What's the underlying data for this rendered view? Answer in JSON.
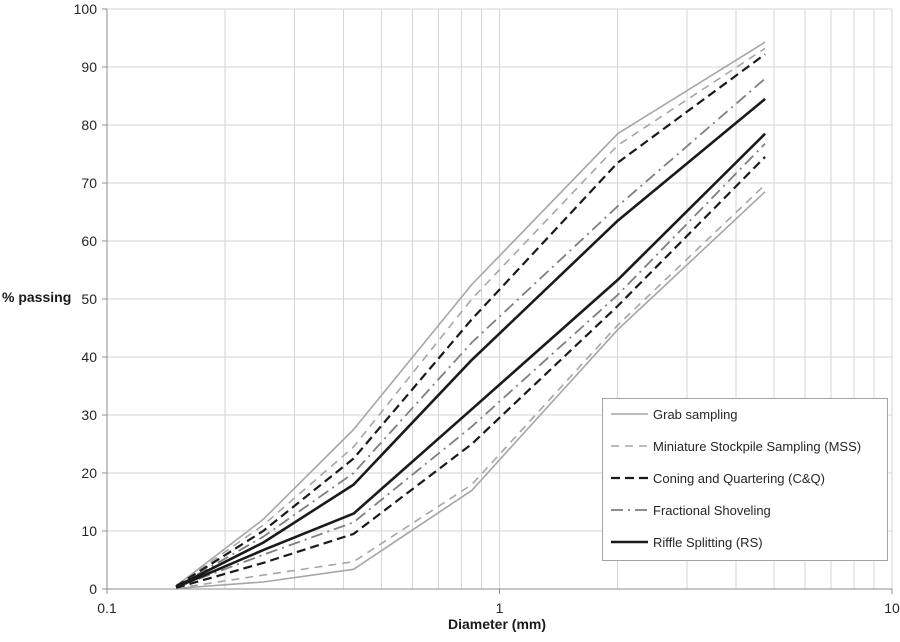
{
  "chart_data": {
    "type": "line",
    "title": "",
    "xlabel": "Diameter (mm)",
    "ylabel": "% passing",
    "x_scale": "log",
    "xlim": [
      0.1,
      10
    ],
    "ylim": [
      0,
      100
    ],
    "grid": true,
    "legend_position": "inside lower right",
    "x_major_ticks": [
      0.1,
      1,
      10
    ],
    "x_tick_labels": [
      "0.1",
      "1",
      "10"
    ],
    "x_minor_gridlines": [
      0.2,
      0.3,
      0.4,
      0.5,
      0.6,
      0.7,
      0.8,
      0.9,
      2,
      3,
      4,
      5,
      6,
      7,
      8,
      9
    ],
    "y_ticks": [
      0,
      10,
      20,
      30,
      40,
      50,
      60,
      70,
      80,
      90,
      100
    ],
    "y_tick_labels": [
      "0",
      "10",
      "20",
      "30",
      "40",
      "50",
      "60",
      "70",
      "80",
      "90",
      "100"
    ],
    "colors": {
      "gray_light": "#a6a6a6",
      "gray_mid": "#7f7f7f",
      "black": "#1a1a1a",
      "gridline": "#d6d6d6",
      "axis": "#8c8c8c",
      "tick_text": "#262626",
      "legend_border": "#a3a3a3"
    },
    "x": [
      0.15,
      0.25,
      0.425,
      0.85,
      2,
      4.75
    ],
    "series": [
      {
        "name": "Grab sampling",
        "bound": "upper",
        "color": "#a6a6a6",
        "dasharray": "",
        "width": 1.6,
        "values": [
          0.5,
          12,
          27.5,
          52.5,
          78.5,
          94.3
        ]
      },
      {
        "name": "Grab sampling",
        "bound": "lower",
        "color": "#a6a6a6",
        "dasharray": "",
        "width": 1.6,
        "values": [
          0.1,
          1.2,
          3.4,
          17,
          44.7,
          68.5
        ]
      },
      {
        "name": "Miniature Stockpile Sampling (MSS)",
        "bound": "upper",
        "color": "#a6a6a6",
        "dasharray": "8 6",
        "width": 1.6,
        "values": [
          0.5,
          11,
          24.5,
          50,
          76.5,
          93.2
        ]
      },
      {
        "name": "Miniature Stockpile Sampling (MSS)",
        "bound": "lower",
        "color": "#a6a6a6",
        "dasharray": "8 6",
        "width": 1.6,
        "values": [
          0.1,
          2.4,
          4.7,
          18,
          45.5,
          69.7
        ]
      },
      {
        "name": "Coning and Quartering (C&Q)",
        "bound": "upper",
        "color": "#1a1a1a",
        "dasharray": "9 5",
        "width": 2.2,
        "values": [
          0.5,
          10,
          22.5,
          46.5,
          73.5,
          92.2
        ]
      },
      {
        "name": "Coning and Quartering (C&Q)",
        "bound": "lower",
        "color": "#1a1a1a",
        "dasharray": "9 5",
        "width": 2.2,
        "values": [
          0.2,
          4.5,
          9.5,
          25,
          48.8,
          74.5
        ]
      },
      {
        "name": "Fractional Shoveling",
        "bound": "upper",
        "color": "#7f7f7f",
        "dasharray": "12 5 2 5",
        "width": 1.8,
        "values": [
          0.4,
          9,
          20,
          42.5,
          66,
          88
        ]
      },
      {
        "name": "Fractional Shoveling",
        "bound": "lower",
        "color": "#7f7f7f",
        "dasharray": "12 5 2 5",
        "width": 1.8,
        "values": [
          0.3,
          5.9,
          11.5,
          28,
          50.7,
          76.8
        ]
      },
      {
        "name": "Riffle Splitting (RS)",
        "bound": "upper",
        "color": "#1a1a1a",
        "dasharray": "",
        "width": 2.6,
        "values": [
          0.4,
          8,
          18,
          39.5,
          63.5,
          84.5
        ]
      },
      {
        "name": "Riffle Splitting (RS)",
        "bound": "lower",
        "color": "#1a1a1a",
        "dasharray": "",
        "width": 2.6,
        "values": [
          0.3,
          6.7,
          13,
          31,
          53.3,
          78.5
        ]
      }
    ],
    "legend": [
      {
        "label": "Grab sampling",
        "color": "#a6a6a6",
        "dasharray": "",
        "width": 1.6
      },
      {
        "label": "Miniature Stockpile Sampling (MSS)",
        "color": "#a6a6a6",
        "dasharray": "8 6",
        "width": 1.6
      },
      {
        "label": "Coning and Quartering (C&Q)",
        "color": "#1a1a1a",
        "dasharray": "9 5",
        "width": 2.2
      },
      {
        "label": "Fractional Shoveling",
        "color": "#7f7f7f",
        "dasharray": "12 5 2 5",
        "width": 1.8
      },
      {
        "label": "Riffle Splitting (RS)",
        "color": "#1a1a1a",
        "dasharray": "",
        "width": 2.6
      }
    ]
  }
}
